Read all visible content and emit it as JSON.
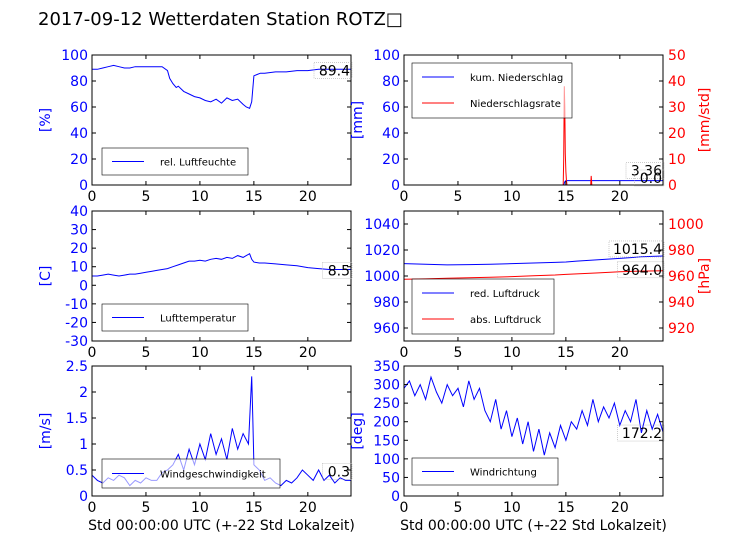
{
  "title": "2017-09-12 Wetterdaten Station ROTZ□",
  "colors": {
    "primary": "#0000ff",
    "secondary": "#ff0000",
    "axis": "#000000"
  },
  "chart_data": [
    {
      "type": "line",
      "ylabel": "[%]",
      "xlim": [
        0,
        24
      ],
      "ylim": [
        0,
        100
      ],
      "xticks": [
        0,
        5,
        10,
        15,
        20
      ],
      "yticks": [
        0,
        20,
        40,
        60,
        80,
        100
      ],
      "xlabel": "",
      "legend": {
        "placement": "lower-left"
      },
      "series": [
        {
          "name": "rel. Luftfeuchte",
          "color": "#0000ff",
          "axis": "left",
          "x": [
            0,
            0.5,
            1,
            1.5,
            2,
            2.5,
            3,
            3.5,
            4,
            4.5,
            5,
            5.5,
            6,
            6.5,
            7,
            7.2,
            7.5,
            7.8,
            8,
            8.5,
            9,
            9.5,
            10,
            10.5,
            11,
            11.5,
            12,
            12.5,
            13,
            13.5,
            14,
            14.3,
            14.6,
            14.8,
            15,
            15.3,
            15.6,
            16,
            17,
            18,
            19,
            20,
            21,
            22,
            23,
            24
          ],
          "y": [
            89,
            89,
            90,
            91,
            92,
            91,
            90,
            90,
            91,
            91,
            91,
            91,
            91,
            91,
            88,
            82,
            78,
            75,
            76,
            72,
            70,
            68,
            67,
            65,
            64,
            66,
            63,
            67,
            65,
            66,
            62,
            60,
            59,
            64,
            84,
            85,
            86,
            86,
            87,
            87,
            88,
            88,
            89,
            89,
            89,
            89
          ]
        }
      ],
      "last_value_label": "89.4"
    },
    {
      "type": "line",
      "ylabel": "[mm]",
      "ylabel_right": "[mm/std]",
      "xlim": [
        0,
        24
      ],
      "ylim": [
        0,
        100
      ],
      "ylim_right": [
        0,
        50
      ],
      "xticks": [
        0,
        5,
        10,
        15,
        20
      ],
      "yticks": [
        0,
        20,
        40,
        60,
        80,
        100
      ],
      "yticks_right": [
        0,
        10,
        20,
        30,
        40,
        50
      ],
      "xlabel": "",
      "legend": {
        "placement": "upper-left"
      },
      "series": [
        {
          "name": "kum. Niederschlag",
          "color": "#0000ff",
          "axis": "left",
          "x": [
            0,
            14.8,
            14.9,
            15.0,
            24
          ],
          "y": [
            0,
            0,
            2.5,
            3.4,
            3.4
          ]
        },
        {
          "name": "Niederschlagsrate",
          "color": "#ff0000",
          "axis": "right",
          "x": [
            0,
            14.75,
            14.8,
            14.85,
            14.9,
            14.95,
            15.0,
            15.05,
            15.1,
            15.15,
            17.0,
            17.3,
            17.35,
            17.4,
            17.5,
            24
          ],
          "y": [
            0,
            0,
            10,
            38,
            30,
            12,
            5,
            2,
            0,
            0,
            0,
            0,
            3.5,
            0,
            0,
            0
          ]
        }
      ],
      "last_value_label": "3.36",
      "last_value_label_2": "0.0"
    },
    {
      "type": "line",
      "ylabel": "[C]",
      "xlim": [
        0,
        24
      ],
      "ylim": [
        -30,
        40
      ],
      "xticks": [
        0,
        5,
        10,
        15,
        20
      ],
      "yticks": [
        -30,
        -20,
        -10,
        0,
        10,
        20,
        30,
        40
      ],
      "xlabel": "",
      "legend": {
        "placement": "lower-left"
      },
      "series": [
        {
          "name": "Lufttemperatur",
          "color": "#0000ff",
          "axis": "left",
          "x": [
            0,
            0.5,
            1,
            1.5,
            2,
            2.5,
            3,
            3.5,
            4,
            4.5,
            5,
            5.5,
            6,
            6.5,
            7,
            7.5,
            8,
            8.5,
            9,
            9.5,
            10,
            10.5,
            11,
            11.5,
            12,
            12.5,
            13,
            13.5,
            14,
            14.3,
            14.6,
            14.8,
            15,
            15.5,
            16,
            17,
            18,
            19,
            20,
            21,
            22,
            23,
            24
          ],
          "y": [
            5,
            5,
            5.5,
            6,
            5.5,
            5,
            5.5,
            6,
            6,
            6.5,
            7,
            7.5,
            8,
            8.5,
            9,
            10,
            11,
            12,
            13,
            13,
            13.5,
            13,
            14,
            14.5,
            14,
            15,
            14.5,
            16,
            15,
            16,
            17,
            14,
            12.5,
            12,
            12,
            11.5,
            11,
            10.5,
            9.5,
            9,
            8.5,
            8.5,
            8.5
          ]
        }
      ],
      "last_value_label": "8.5"
    },
    {
      "type": "line",
      "ylabel": "",
      "ylabel_right": "[hPa]",
      "xlim": [
        0,
        24
      ],
      "ylim": [
        950,
        1050
      ],
      "ylim_right": [
        910,
        1010
      ],
      "xticks": [
        0,
        5,
        10,
        15,
        20
      ],
      "yticks": [
        960,
        980,
        1000,
        1020,
        1040
      ],
      "yticks_right": [
        920,
        940,
        960,
        980,
        1000
      ],
      "xlabel": "",
      "legend": {
        "placement": "lower-left"
      },
      "series": [
        {
          "name": "red. Luftdruck",
          "color": "#0000ff",
          "axis": "left",
          "x": [
            0,
            2,
            4,
            6,
            8,
            10,
            12,
            14,
            15,
            16,
            18,
            20,
            22,
            24
          ],
          "y": [
            1009.5,
            1009.0,
            1008.5,
            1008.8,
            1009.0,
            1009.5,
            1010.0,
            1010.5,
            1010.8,
            1011.5,
            1012.5,
            1013.5,
            1014.8,
            1015.4
          ]
        },
        {
          "name": "abs. Luftdruck",
          "color": "#ff0000",
          "axis": "right",
          "x": [
            0,
            2,
            4,
            6,
            8,
            10,
            12,
            14,
            15,
            16,
            18,
            20,
            22,
            24
          ],
          "y": [
            957.5,
            957.8,
            958.2,
            958.6,
            959.0,
            959.5,
            960.2,
            960.8,
            961.2,
            961.6,
            962.4,
            963.2,
            963.8,
            964.0
          ]
        }
      ],
      "last_value_label": "1015.4",
      "last_value_label_2": "964.0"
    },
    {
      "type": "line",
      "ylabel": "[m/s]",
      "xlabel": "Std 00:00:00 UTC (+-22 Std Lokalzeit)",
      "xlim": [
        0,
        24
      ],
      "ylim": [
        0,
        2.5
      ],
      "xticks": [
        0,
        5,
        10,
        15,
        20
      ],
      "yticks": [
        0.0,
        0.5,
        1.0,
        1.5,
        2.0,
        2.5
      ],
      "legend": {
        "placement": "lower-left"
      },
      "series": [
        {
          "name": "Windgeschwindigkeit",
          "color": "#0000ff",
          "axis": "left",
          "x": [
            0,
            0.5,
            1,
            1.5,
            2,
            2.5,
            3,
            3.5,
            4,
            4.5,
            5,
            5.5,
            6,
            6.5,
            7,
            7.5,
            8,
            8.5,
            9,
            9.5,
            10,
            10.5,
            11,
            11.5,
            12,
            12.5,
            13,
            13.5,
            14,
            14.5,
            14.8,
            14.9,
            15,
            15.5,
            16,
            16.5,
            17,
            17.5,
            18,
            18.5,
            19,
            19.5,
            20,
            20.5,
            21,
            21.5,
            22,
            22.5,
            23,
            23.5,
            24
          ],
          "y": [
            0.4,
            0.3,
            0.25,
            0.35,
            0.3,
            0.4,
            0.35,
            0.2,
            0.3,
            0.25,
            0.35,
            0.3,
            0.3,
            0.45,
            0.5,
            0.6,
            0.8,
            0.5,
            0.9,
            0.6,
            1.0,
            0.7,
            1.2,
            0.8,
            1.1,
            0.7,
            1.3,
            0.9,
            1.2,
            1.0,
            2.3,
            1.5,
            0.6,
            0.5,
            0.3,
            0.35,
            0.25,
            0.2,
            0.3,
            0.25,
            0.35,
            0.5,
            0.4,
            0.3,
            0.5,
            0.3,
            0.4,
            0.25,
            0.35,
            0.3,
            0.3
          ]
        }
      ],
      "last_value_label": "0.3"
    },
    {
      "type": "line",
      "ylabel": "[deg]",
      "xlabel": "Std 00:00:00 UTC (+-22 Std Lokalzeit)",
      "xlim": [
        0,
        24
      ],
      "ylim": [
        0,
        350
      ],
      "xticks": [
        0,
        5,
        10,
        15,
        20
      ],
      "yticks": [
        0,
        50,
        100,
        150,
        200,
        250,
        300,
        350
      ],
      "legend": {
        "placement": "lower-left"
      },
      "series": [
        {
          "name": "Windrichtung",
          "color": "#0000ff",
          "axis": "left",
          "x": [
            0,
            0.5,
            1,
            1.5,
            2,
            2.5,
            3,
            3.5,
            4,
            4.5,
            5,
            5.5,
            6,
            6.5,
            7,
            7.5,
            8,
            8.5,
            9,
            9.5,
            10,
            10.5,
            11,
            11.5,
            12,
            12.5,
            13,
            13.5,
            14,
            14.5,
            15,
            15.5,
            16,
            16.5,
            17,
            17.5,
            18,
            18.5,
            19,
            19.5,
            20,
            20.5,
            21,
            21.5,
            22,
            22.5,
            23,
            23.5,
            24
          ],
          "y": [
            290,
            310,
            270,
            300,
            260,
            320,
            280,
            250,
            300,
            270,
            290,
            240,
            310,
            260,
            290,
            230,
            200,
            260,
            180,
            230,
            160,
            210,
            140,
            200,
            120,
            180,
            110,
            170,
            130,
            190,
            150,
            200,
            180,
            230,
            190,
            260,
            200,
            240,
            210,
            250,
            190,
            230,
            200,
            260,
            170,
            230,
            180,
            220,
            172.2
          ]
        }
      ],
      "last_value_label": "172.2"
    }
  ]
}
